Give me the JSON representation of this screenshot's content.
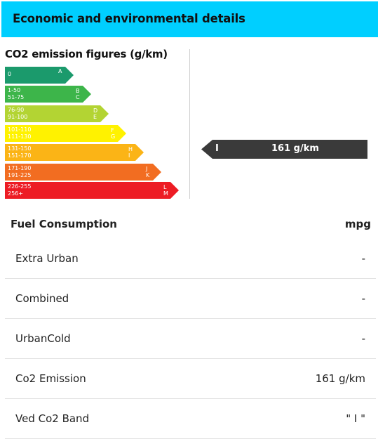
{
  "header": {
    "title": "Economic and environmental details"
  },
  "co2": {
    "title": "CO2 emission figures (g/km)",
    "bands": [
      {
        "ranges": [
          "0",
          ""
        ],
        "letters": [
          "A",
          ""
        ],
        "color": "#1b9a6c"
      },
      {
        "ranges": [
          "1-50",
          "51-75"
        ],
        "letters": [
          "B",
          "C"
        ],
        "color": "#3db54a"
      },
      {
        "ranges": [
          "76-90",
          "91-100"
        ],
        "letters": [
          "D",
          "E"
        ],
        "color": "#b3d433"
      },
      {
        "ranges": [
          "101-110",
          "111-130"
        ],
        "letters": [
          "F",
          "G"
        ],
        "color": "#fff200"
      },
      {
        "ranges": [
          "131-150",
          "151-170"
        ],
        "letters": [
          "H",
          "I"
        ],
        "color": "#fbb416"
      },
      {
        "ranges": [
          "171-190",
          "191-225"
        ],
        "letters": [
          "J",
          "K"
        ],
        "color": "#f26d21"
      },
      {
        "ranges": [
          "226-255",
          "256+"
        ],
        "letters": [
          "L",
          "M"
        ],
        "color": "#ed1c24"
      }
    ],
    "indicator": {
      "letter": "I",
      "value": "161 g/km",
      "color": "#3a3a3a"
    }
  },
  "fuel": {
    "heading": "Fuel Consumption",
    "unit": "mpg",
    "rows": [
      {
        "label": "Extra Urban",
        "value": "-"
      },
      {
        "label": "Combined",
        "value": "-"
      },
      {
        "label": "UrbanCold",
        "value": "-"
      },
      {
        "label": "Co2 Emission",
        "value": "161 g/km"
      },
      {
        "label": "Ved Co2 Band",
        "value": "\" I \""
      }
    ]
  }
}
